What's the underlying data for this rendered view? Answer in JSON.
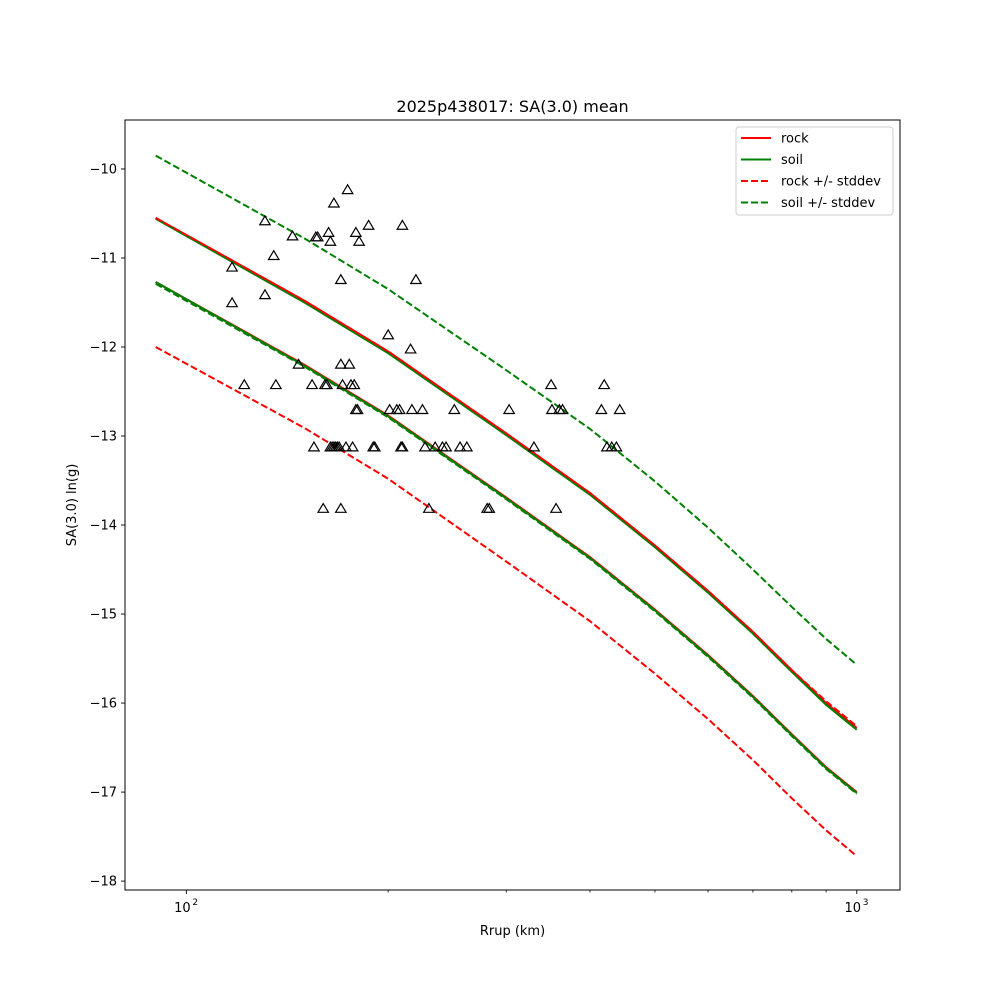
{
  "chart_data": {
    "type": "scatter",
    "title": "2025p438017: SA(3.0) mean",
    "xlabel": "Rrup (km)",
    "ylabel": "SA(3.0) ln(g)",
    "x_scale": "log",
    "xlim": [
      81,
      1160
    ],
    "ylim": [
      -18.1,
      -9.45
    ],
    "x_major_ticks": [
      100,
      1000
    ],
    "x_major_tick_labels": [
      "10",
      "10"
    ],
    "x_major_tick_exponents": [
      "2",
      "3"
    ],
    "x_minor_ticks": [
      200,
      300,
      400,
      500,
      600,
      700,
      800,
      900
    ],
    "y_ticks": [
      -18,
      -17,
      -16,
      -15,
      -14,
      -13,
      -12,
      -11,
      -10
    ],
    "y_tick_labels": [
      "−18",
      "−17",
      "−16",
      "−15",
      "−14",
      "−13",
      "−12",
      "−11",
      "−10"
    ],
    "grid": false,
    "legend_position": "top-right",
    "colors": {
      "rock": "#ff0000",
      "soil": "#008000",
      "points": "#000000"
    },
    "legend": [
      {
        "label": "rock",
        "color": "#ff0000",
        "style": "solid"
      },
      {
        "label": "soil",
        "color": "#008000",
        "style": "solid"
      },
      {
        "label": "rock +/- stddev",
        "color": "#ff0000",
        "style": "dashed"
      },
      {
        "label": "soil +/- stddev",
        "color": "#008000",
        "style": "dashed"
      }
    ],
    "lines": [
      {
        "id": "rock",
        "color": "#ff0000",
        "style": "solid",
        "x": [
          90,
          150,
          200,
          300,
          400,
          500,
          600,
          700,
          800,
          900,
          1000
        ],
        "y": [
          -10.55,
          -11.48,
          -12.05,
          -12.97,
          -13.64,
          -14.23,
          -14.74,
          -15.2,
          -15.63,
          -16.0,
          -16.28
        ]
      },
      {
        "id": "rock",
        "color": "#ff0000",
        "style": "solid",
        "x": [
          90,
          150,
          200,
          300,
          400,
          500,
          600,
          700,
          800,
          900,
          1000
        ],
        "y": [
          -11.27,
          -12.2,
          -12.77,
          -13.69,
          -14.36,
          -14.95,
          -15.46,
          -15.92,
          -16.35,
          -16.72,
          -17.0
        ]
      },
      {
        "id": "soil",
        "color": "#008000",
        "style": "solid",
        "x": [
          90,
          150,
          200,
          300,
          400,
          500,
          600,
          700,
          800,
          900,
          1000
        ],
        "y": [
          -10.56,
          -11.5,
          -12.07,
          -12.99,
          -13.66,
          -14.25,
          -14.76,
          -15.22,
          -15.65,
          -16.02,
          -16.3
        ]
      },
      {
        "id": "soil",
        "color": "#008000",
        "style": "solid",
        "x": [
          90,
          150,
          200,
          300,
          400,
          500,
          600,
          700,
          800,
          900,
          1000
        ],
        "y": [
          -11.27,
          -12.21,
          -12.78,
          -13.7,
          -14.37,
          -14.96,
          -15.47,
          -15.93,
          -16.36,
          -16.73,
          -17.01
        ]
      },
      {
        "id": "rock-stddev",
        "color": "#ff0000",
        "style": "dashed",
        "x": [
          90,
          150,
          200,
          300,
          400,
          500,
          600,
          700,
          800,
          900,
          1000
        ],
        "y": [
          -10.55,
          -11.48,
          -12.05,
          -12.97,
          -13.64,
          -14.23,
          -14.74,
          -15.2,
          -15.63,
          -15.98,
          -16.26
        ]
      },
      {
        "id": "rock-stddev",
        "color": "#ff0000",
        "style": "dashed",
        "x": [
          90,
          150,
          200,
          300,
          400,
          500,
          600,
          700,
          800,
          900,
          1000
        ],
        "y": [
          -12.0,
          -12.91,
          -13.48,
          -14.41,
          -15.08,
          -15.67,
          -16.18,
          -16.64,
          -17.07,
          -17.43,
          -17.72
        ]
      },
      {
        "id": "soil-stddev",
        "color": "#008000",
        "style": "dashed",
        "x": [
          90,
          150,
          200,
          300,
          400,
          500,
          600,
          700,
          800,
          900,
          1000
        ],
        "y": [
          -9.85,
          -10.78,
          -11.35,
          -12.26,
          -12.92,
          -13.51,
          -14.03,
          -14.5,
          -14.92,
          -15.28,
          -15.57
        ]
      },
      {
        "id": "soil-stddev",
        "color": "#008000",
        "style": "dashed",
        "x": [
          90,
          150,
          200,
          300,
          400,
          500,
          600,
          700,
          800,
          900,
          1000
        ],
        "y": [
          -11.29,
          -12.22,
          -12.79,
          -13.71,
          -14.38,
          -14.97,
          -15.48,
          -15.94,
          -16.37,
          -16.74,
          -17.02
        ]
      }
    ],
    "points": [
      {
        "x": 117,
        "y": -11.11
      },
      {
        "x": 117,
        "y": -11.51
      },
      {
        "x": 122,
        "y": -12.43
      },
      {
        "x": 131,
        "y": -10.59
      },
      {
        "x": 131,
        "y": -11.42
      },
      {
        "x": 135,
        "y": -10.98
      },
      {
        "x": 136,
        "y": -12.43
      },
      {
        "x": 144,
        "y": -10.76
      },
      {
        "x": 147,
        "y": -12.2
      },
      {
        "x": 154,
        "y": -12.43
      },
      {
        "x": 155,
        "y": -13.13
      },
      {
        "x": 156,
        "y": -10.77
      },
      {
        "x": 157,
        "y": -10.77
      },
      {
        "x": 160,
        "y": -13.82
      },
      {
        "x": 161,
        "y": -12.43
      },
      {
        "x": 162,
        "y": -12.43
      },
      {
        "x": 163,
        "y": -10.72
      },
      {
        "x": 164,
        "y": -10.82
      },
      {
        "x": 164,
        "y": -13.13
      },
      {
        "x": 165,
        "y": -13.13
      },
      {
        "x": 166,
        "y": -10.39
      },
      {
        "x": 166,
        "y": -13.13
      },
      {
        "x": 167,
        "y": -13.13
      },
      {
        "x": 168,
        "y": -13.13
      },
      {
        "x": 169,
        "y": -13.13
      },
      {
        "x": 170,
        "y": -13.82
      },
      {
        "x": 170,
        "y": -12.2
      },
      {
        "x": 170,
        "y": -11.25
      },
      {
        "x": 171,
        "y": -12.43
      },
      {
        "x": 173,
        "y": -13.13
      },
      {
        "x": 174,
        "y": -10.24
      },
      {
        "x": 175,
        "y": -12.2
      },
      {
        "x": 176,
        "y": -12.43
      },
      {
        "x": 177,
        "y": -13.13
      },
      {
        "x": 178,
        "y": -12.43
      },
      {
        "x": 179,
        "y": -10.72
      },
      {
        "x": 179,
        "y": -12.71
      },
      {
        "x": 180,
        "y": -12.71
      },
      {
        "x": 181,
        "y": -10.82
      },
      {
        "x": 187,
        "y": -10.64
      },
      {
        "x": 190,
        "y": -13.13
      },
      {
        "x": 191,
        "y": -13.13
      },
      {
        "x": 200,
        "y": -11.87
      },
      {
        "x": 201,
        "y": -12.71
      },
      {
        "x": 206,
        "y": -12.71
      },
      {
        "x": 208,
        "y": -12.71
      },
      {
        "x": 209,
        "y": -13.13
      },
      {
        "x": 210,
        "y": -13.13
      },
      {
        "x": 210,
        "y": -10.64
      },
      {
        "x": 216,
        "y": -12.03
      },
      {
        "x": 217,
        "y": -12.71
      },
      {
        "x": 220,
        "y": -11.25
      },
      {
        "x": 225,
        "y": -12.71
      },
      {
        "x": 227,
        "y": -13.13
      },
      {
        "x": 230,
        "y": -13.82
      },
      {
        "x": 235,
        "y": -13.13
      },
      {
        "x": 241,
        "y": -13.13
      },
      {
        "x": 244,
        "y": -13.13
      },
      {
        "x": 251,
        "y": -12.71
      },
      {
        "x": 256,
        "y": -13.13
      },
      {
        "x": 262,
        "y": -13.13
      },
      {
        "x": 281,
        "y": -13.82
      },
      {
        "x": 283,
        "y": -13.82
      },
      {
        "x": 303,
        "y": -12.71
      },
      {
        "x": 330,
        "y": -13.13
      },
      {
        "x": 350,
        "y": -12.43
      },
      {
        "x": 351,
        "y": -12.71
      },
      {
        "x": 356,
        "y": -13.82
      },
      {
        "x": 360,
        "y": -12.71
      },
      {
        "x": 364,
        "y": -12.71
      },
      {
        "x": 416,
        "y": -12.71
      },
      {
        "x": 420,
        "y": -12.43
      },
      {
        "x": 424,
        "y": -13.13
      },
      {
        "x": 431,
        "y": -13.13
      },
      {
        "x": 438,
        "y": -13.13
      },
      {
        "x": 443,
        "y": -12.71
      }
    ]
  }
}
